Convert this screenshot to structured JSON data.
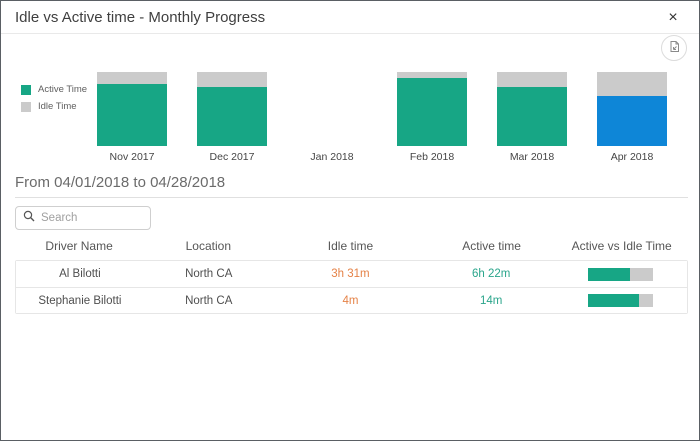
{
  "dialog": {
    "title": "Idle vs Active time - Monthly Progress",
    "close_glyph": "×"
  },
  "chart_data": {
    "type": "bar",
    "stacked": true,
    "units": "percent",
    "categories": [
      "Nov 2017",
      "Dec 2017",
      "Jan 2018",
      "Feb 2018",
      "Mar 2018",
      "Apr 2018"
    ],
    "series": [
      {
        "name": "Active Time",
        "color": "#17a685",
        "values_pct": [
          84,
          80,
          null,
          92,
          80,
          68
        ]
      },
      {
        "name": "Idle Time",
        "color": "#cbcbcb",
        "values_pct": [
          16,
          20,
          null,
          8,
          20,
          32
        ]
      }
    ],
    "selected_category": "Apr 2018",
    "selected_color": "#0e86d7",
    "legend_position": "left",
    "note": "Jan 2018 has no bar (no data)"
  },
  "period": {
    "label": "From 04/01/2018 to 04/28/2018"
  },
  "search": {
    "placeholder": "Search"
  },
  "table": {
    "columns": [
      "Driver Name",
      "Location",
      "Idle time",
      "Active time",
      "Active vs Idle Time"
    ],
    "rows": [
      {
        "driver": "Al Bilotti",
        "location": "North CA",
        "idle": "3h 31m",
        "active": "6h 22m",
        "active_pct": 64
      },
      {
        "driver": "Stephanie Bilotti",
        "location": "North CA",
        "idle": "4m",
        "active": "14m",
        "active_pct": 78
      }
    ]
  },
  "colors": {
    "teal": "#17a685",
    "idle_gray": "#cbcbcb",
    "selected_blue": "#0e86d7",
    "idle_text_orange": "#e58247",
    "active_text_teal": "#2aa58b"
  }
}
